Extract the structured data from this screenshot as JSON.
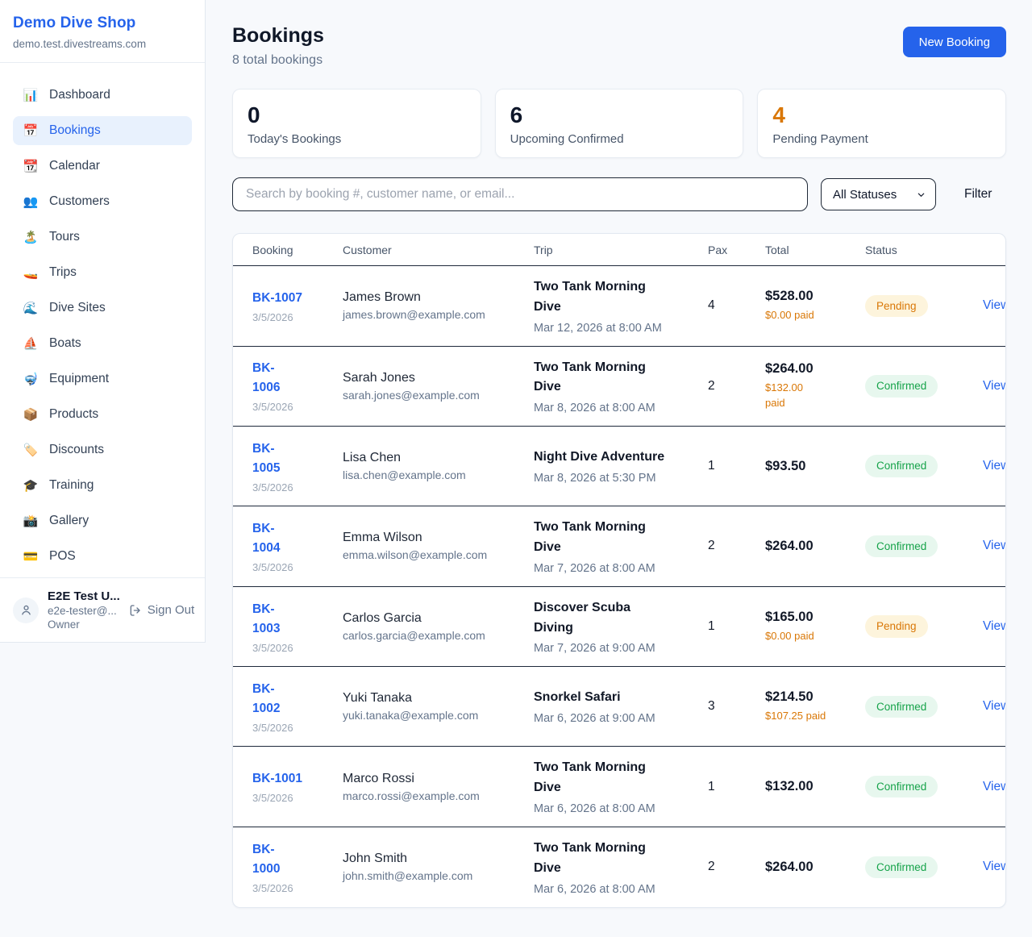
{
  "sidebar": {
    "brand": {
      "name": "Demo Dive Shop",
      "domain": "demo.test.divestreams.com"
    },
    "items": [
      {
        "key": "dashboard",
        "icon": "📊",
        "label": "Dashboard",
        "active": false
      },
      {
        "key": "bookings",
        "icon": "📅",
        "label": "Bookings",
        "active": true
      },
      {
        "key": "calendar",
        "icon": "📆",
        "label": "Calendar",
        "active": false
      },
      {
        "key": "customers",
        "icon": "👥",
        "label": "Customers",
        "active": false
      },
      {
        "key": "tours",
        "icon": "🏝️",
        "label": "Tours",
        "active": false
      },
      {
        "key": "trips",
        "icon": "🚤",
        "label": "Trips",
        "active": false
      },
      {
        "key": "dive-sites",
        "icon": "🌊",
        "label": "Dive Sites",
        "active": false
      },
      {
        "key": "boats",
        "icon": "⛵",
        "label": "Boats",
        "active": false
      },
      {
        "key": "equipment",
        "icon": "🤿",
        "label": "Equipment",
        "active": false
      },
      {
        "key": "products",
        "icon": "📦",
        "label": "Products",
        "active": false
      },
      {
        "key": "discounts",
        "icon": "🏷️",
        "label": "Discounts",
        "active": false
      },
      {
        "key": "training",
        "icon": "🎓",
        "label": "Training",
        "active": false
      },
      {
        "key": "gallery",
        "icon": "📸",
        "label": "Gallery",
        "active": false
      },
      {
        "key": "pos",
        "icon": "💳",
        "label": "POS",
        "active": false
      }
    ],
    "user": {
      "name": "E2E Test U...",
      "email": "e2e-tester@...",
      "role": "Owner",
      "sign_out_label": "Sign Out"
    }
  },
  "header": {
    "title": "Bookings",
    "subtitle": "8 total bookings",
    "new_booking_label": "New Booking"
  },
  "stats": [
    {
      "value": "0",
      "label": "Today's Bookings",
      "accent": "dark"
    },
    {
      "value": "6",
      "label": "Upcoming Confirmed",
      "accent": "dark"
    },
    {
      "value": "4",
      "label": "Pending Payment",
      "accent": "orange"
    }
  ],
  "filters": {
    "search_placeholder": "Search by booking #, customer name, or email...",
    "status_selected": "All Statuses",
    "filter_label": "Filter"
  },
  "table": {
    "columns": [
      "Booking",
      "Customer",
      "Trip",
      "Pax",
      "Total",
      "Status",
      ""
    ],
    "rows": [
      {
        "id_lines": [
          "BK-1007"
        ],
        "date": "3/5/2026",
        "customer": "James Brown",
        "email": "james.brown@example.com",
        "trip_lines": [
          "Two Tank Morning",
          "Dive"
        ],
        "trip_datetime": "Mar 12, 2026 at 8:00 AM",
        "pax": "4",
        "total": "$528.00",
        "paid_lines": [
          "$0.00 paid"
        ],
        "status": "Pending",
        "action": "View"
      },
      {
        "id_lines": [
          "BK-",
          "1006"
        ],
        "date": "3/5/2026",
        "customer": "Sarah Jones",
        "email": "sarah.jones@example.com",
        "trip_lines": [
          "Two Tank Morning",
          "Dive"
        ],
        "trip_datetime": "Mar 8, 2026 at 8:00 AM",
        "pax": "2",
        "total": "$264.00",
        "paid_lines": [
          "$132.00",
          "paid"
        ],
        "status": "Confirmed",
        "action": "View"
      },
      {
        "id_lines": [
          "BK-",
          "1005"
        ],
        "date": "3/5/2026",
        "customer": "Lisa Chen",
        "email": "lisa.chen@example.com",
        "trip_lines": [
          "Night Dive Adventure"
        ],
        "trip_datetime": "Mar 8, 2026 at 5:30 PM",
        "pax": "1",
        "total": "$93.50",
        "paid_lines": [],
        "status": "Confirmed",
        "action": "View"
      },
      {
        "id_lines": [
          "BK-",
          "1004"
        ],
        "date": "3/5/2026",
        "customer": "Emma Wilson",
        "email": "emma.wilson@example.com",
        "trip_lines": [
          "Two Tank Morning",
          "Dive"
        ],
        "trip_datetime": "Mar 7, 2026 at 8:00 AM",
        "pax": "2",
        "total": "$264.00",
        "paid_lines": [],
        "status": "Confirmed",
        "action": "View"
      },
      {
        "id_lines": [
          "BK-",
          "1003"
        ],
        "date": "3/5/2026",
        "customer": "Carlos Garcia",
        "email": "carlos.garcia@example.com",
        "trip_lines": [
          "Discover Scuba",
          "Diving"
        ],
        "trip_datetime": "Mar 7, 2026 at 9:00 AM",
        "pax": "1",
        "total": "$165.00",
        "paid_lines": [
          "$0.00 paid"
        ],
        "status": "Pending",
        "action": "View"
      },
      {
        "id_lines": [
          "BK-",
          "1002"
        ],
        "date": "3/5/2026",
        "customer": "Yuki Tanaka",
        "email": "yuki.tanaka@example.com",
        "trip_lines": [
          "Snorkel Safari"
        ],
        "trip_datetime": "Mar 6, 2026 at 9:00 AM",
        "pax": "3",
        "total": "$214.50",
        "paid_lines": [
          "$107.25 paid"
        ],
        "status": "Confirmed",
        "action": "View"
      },
      {
        "id_lines": [
          "BK-1001"
        ],
        "date": "3/5/2026",
        "customer": "Marco Rossi",
        "email": "marco.rossi@example.com",
        "trip_lines": [
          "Two Tank Morning",
          "Dive"
        ],
        "trip_datetime": "Mar 6, 2026 at 8:00 AM",
        "pax": "1",
        "total": "$132.00",
        "paid_lines": [],
        "status": "Confirmed",
        "action": "View"
      },
      {
        "id_lines": [
          "BK-",
          "1000"
        ],
        "date": "3/5/2026",
        "customer": "John Smith",
        "email": "john.smith@example.com",
        "trip_lines": [
          "Two Tank Morning",
          "Dive"
        ],
        "trip_datetime": "Mar 6, 2026 at 8:00 AM",
        "pax": "2",
        "total": "$264.00",
        "paid_lines": [],
        "status": "Confirmed",
        "action": "View"
      }
    ]
  },
  "colors": {
    "brand_blue": "#2563eb",
    "pending_text": "#d97706",
    "pending_bg": "#fdf4dc",
    "confirmed_text": "#16a34a",
    "confirmed_bg": "#e7f7ee",
    "row_divider": "#1e293b",
    "card_border": "#e2e8f0"
  }
}
